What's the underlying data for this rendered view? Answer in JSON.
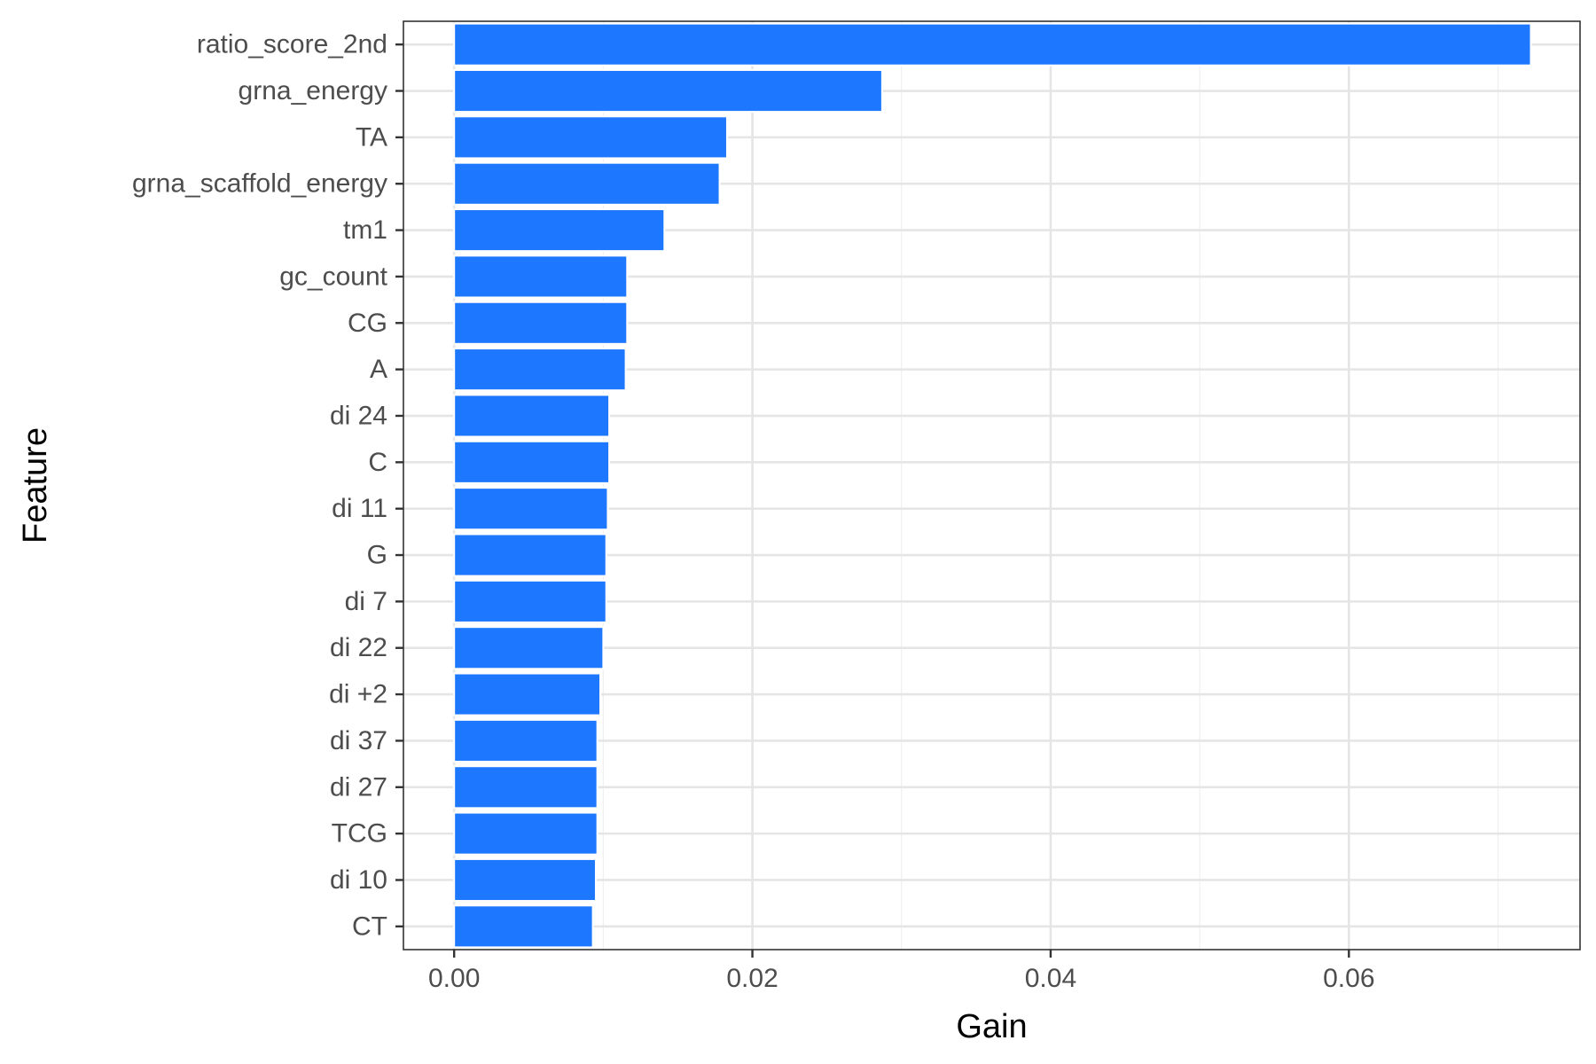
{
  "chart_data": {
    "type": "bar",
    "orientation": "horizontal",
    "xlabel": "Gain",
    "ylabel": "Feature",
    "xlim": [
      -0.0034,
      0.0755
    ],
    "xticks": [
      0.0,
      0.02,
      0.04,
      0.06
    ],
    "xtick_labels": [
      "0.00",
      "0.02",
      "0.04",
      "0.06"
    ],
    "grid": true,
    "legend": "none",
    "colors": {
      "bar": "#1E78FF",
      "bar_outline": "#FFFFFF",
      "grid_major": "#E5E5E5",
      "grid_minor": "#F0F0F0",
      "panel_border": "#333333",
      "tick": "#333333"
    },
    "categories": [
      "ratio_score_2nd",
      "grna_energy",
      "TA",
      "grna_scaffold_energy",
      "tm1",
      "gc_count",
      "CG",
      "A",
      "di 24",
      "C",
      "di 11",
      "G",
      "di 7",
      "di 22",
      "di +2",
      "di 37",
      "di 27",
      "TCG",
      "di 10",
      "CT"
    ],
    "values": [
      0.0722,
      0.0287,
      0.0183,
      0.0178,
      0.0141,
      0.0116,
      0.0116,
      0.0115,
      0.0104,
      0.0104,
      0.0103,
      0.0102,
      0.0102,
      0.01,
      0.0098,
      0.0096,
      0.0096,
      0.0096,
      0.0095,
      0.0093
    ]
  }
}
